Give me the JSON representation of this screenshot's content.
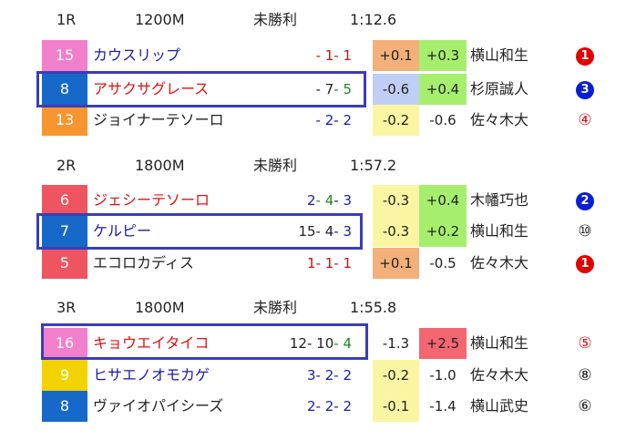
{
  "races": [
    {
      "race": "1R",
      "distance": "1200M",
      "class": "未勝利",
      "time": "1:12.6",
      "horses": [
        {
          "num": "15",
          "num_bg": "#f27fcc",
          "name": "カウスリップ",
          "name_color": "#1a1aaa",
          "p1": "- 1",
          "p1c": "#cc1111",
          "p2": "- 1",
          "p2c": "#cc1111",
          "p3": "",
          "p3c": "#cc1111",
          "d1": "+0.1",
          "d1bg": "#f3b07b",
          "d2": "+0.3",
          "d2bg": "#a6ee6e",
          "jockey": "横山和生",
          "rank": "1",
          "rank_style": "filled",
          "rank_color": "#e10000"
        },
        {
          "num": "8",
          "num_bg": "#1669c8",
          "name": "アサクサグレース",
          "name_color": "#dd1111",
          "p1": "- 7",
          "p1c": "#222222",
          "p2": "- 5",
          "p2c": "#1a8a1a",
          "p3": "",
          "p3c": "#222222",
          "d1": "-0.6",
          "d1bg": "#c0cdf5",
          "d2": "+0.4",
          "d2bg": "#a6ee6e",
          "jockey": "杉原誠人",
          "rank": "3",
          "rank_style": "filled",
          "rank_color": "#0a1fd0"
        },
        {
          "num": "13",
          "num_bg": "#f79630",
          "name": "ジョイナーテソーロ",
          "name_color": "#222222",
          "p1": "- 2",
          "p1c": "#1a1aaa",
          "p2": "- 2",
          "p2c": "#1a1aaa",
          "p3": "",
          "p3c": "#222222",
          "d1": "-0.2",
          "d1bg": "#faf5a2",
          "d2": "-0.6",
          "d2bg": "#ffffff",
          "jockey": "佐々木大",
          "rank": "④",
          "rank_style": "text",
          "rank_color": "#dd1111"
        }
      ]
    },
    {
      "race": "2R",
      "distance": "1800M",
      "class": "未勝利",
      "time": "1:57.2",
      "horses": [
        {
          "num": "6",
          "num_bg": "#ee5560",
          "name": "ジェシーテソーロ",
          "name_color": "#dd1111",
          "p1": "2",
          "p1c": "#1a1aaa",
          "p2": "- 4",
          "p2c": "#1a8a1a",
          "p3": "- 3",
          "p3c": "#1a1aaa",
          "d1": "-0.3",
          "d1bg": "#faf5a2",
          "d2": "+0.4",
          "d2bg": "#a6ee6e",
          "jockey": "木幡巧也",
          "rank": "2",
          "rank_style": "filled",
          "rank_color": "#0a1fd0"
        },
        {
          "num": "7",
          "num_bg": "#1669c8",
          "name": "ケルピー",
          "name_color": "#1a1aaa",
          "p1": "15",
          "p1c": "#222222",
          "p2": "- 4",
          "p2c": "#222222",
          "p3": "- 3",
          "p3c": "#1a1aaa",
          "d1": "-0.3",
          "d1bg": "#faf5a2",
          "d2": "+0.2",
          "d2bg": "#a6ee6e",
          "jockey": "横山和生",
          "rank": "⑩",
          "rank_style": "text",
          "rank_color": "#222222"
        },
        {
          "num": "5",
          "num_bg": "#ee5560",
          "name": "エコロカディス",
          "name_color": "#222222",
          "p1": "1",
          "p1c": "#cc1111",
          "p2": "- 1",
          "p2c": "#cc1111",
          "p3": "- 1",
          "p3c": "#cc1111",
          "d1": "+0.1",
          "d1bg": "#f3b07b",
          "d2": "-0.5",
          "d2bg": "#ffffff",
          "jockey": "佐々木大",
          "rank": "1",
          "rank_style": "filled",
          "rank_color": "#e10000"
        }
      ]
    },
    {
      "race": "3R",
      "distance": "1800M",
      "class": "未勝利",
      "time": "1:55.8",
      "horses": [
        {
          "num": "16",
          "num_bg": "#f27fcc",
          "name": "キョウエイタイコ",
          "name_color": "#dd1111",
          "p1": "12",
          "p1c": "#222222",
          "p2": "- 10",
          "p2c": "#222222",
          "p3": "- 4",
          "p3c": "#1a8a1a",
          "d1": "-1.3",
          "d1bg": "#ffffff",
          "d2": "+2.5",
          "d2bg": "#f46670",
          "jockey": "横山和生",
          "rank": "⑤",
          "rank_style": "text",
          "rank_color": "#dd1111"
        },
        {
          "num": "9",
          "num_bg": "#f2d200",
          "name": "ヒサエノオモカゲ",
          "name_color": "#1a1aaa",
          "p1": "3",
          "p1c": "#1a1aaa",
          "p2": "- 2",
          "p2c": "#1a1aaa",
          "p3": "- 2",
          "p3c": "#1a1aaa",
          "d1": "-0.2",
          "d1bg": "#faf5a2",
          "d2": "-1.0",
          "d2bg": "#ffffff",
          "jockey": "佐々木大",
          "rank": "⑧",
          "rank_style": "text",
          "rank_color": "#222222"
        },
        {
          "num": "8",
          "num_bg": "#1669c8",
          "name": "ヴァイオパイシーズ",
          "name_color": "#222222",
          "p1": "2",
          "p1c": "#1a1aaa",
          "p2": "- 2",
          "p2c": "#1a1aaa",
          "p3": "- 2",
          "p3c": "#1a1aaa",
          "d1": "-0.1",
          "d1bg": "#faf5a2",
          "d2": "-1.4",
          "d2bg": "#ffffff",
          "jockey": "横山武史",
          "rank": "⑥",
          "rank_style": "text",
          "rank_color": "#222222"
        }
      ]
    }
  ]
}
